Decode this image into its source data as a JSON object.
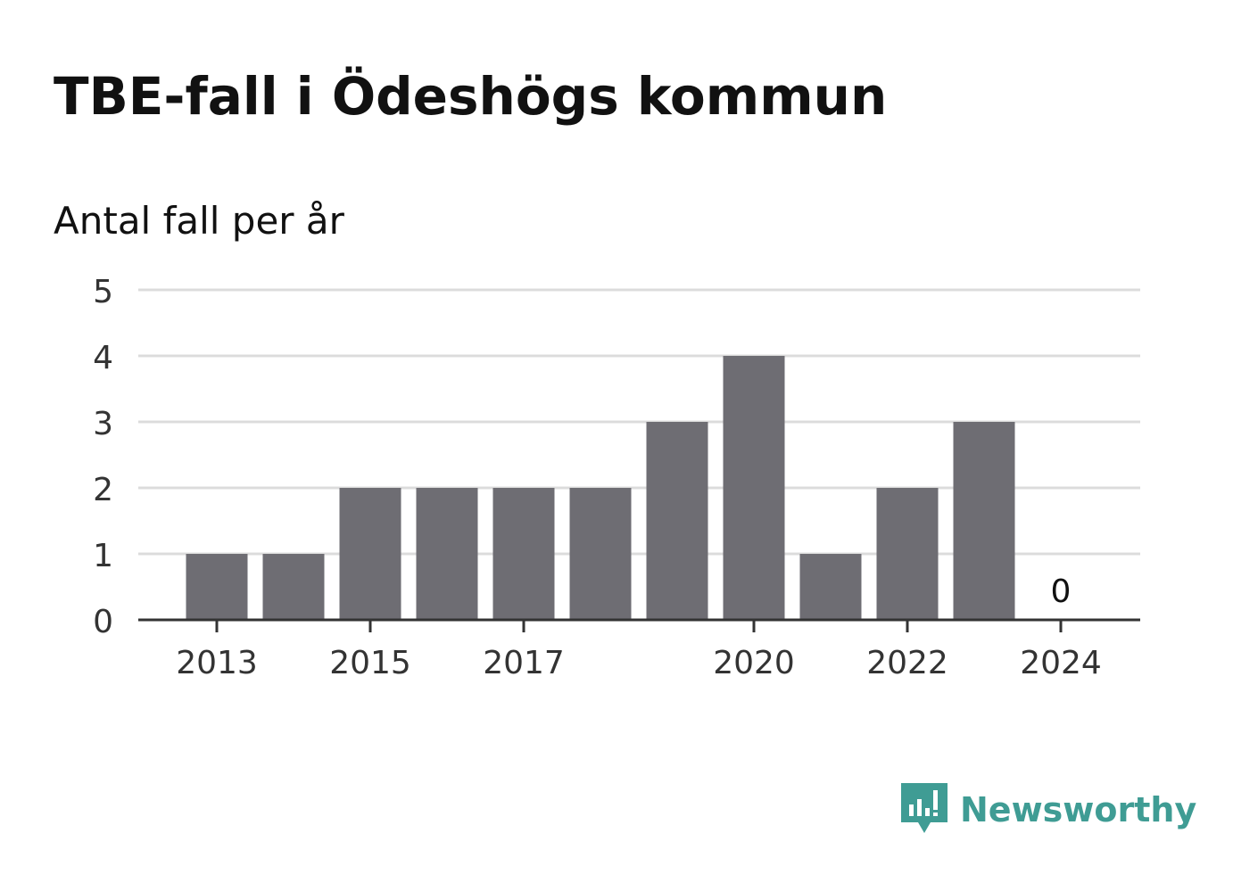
{
  "header": {
    "title": "TBE-fall i Ödeshögs kommun",
    "subtitle": "Antal fall per år"
  },
  "brand": {
    "name": "Newsworthy",
    "icon": "newsworthy-logo-icon",
    "color": "#3f9c94"
  },
  "colors": {
    "bar": "#6e6d73",
    "grid": "#dcdcdc",
    "axis": "#333333",
    "tick_text": "#333333",
    "label_text": "#111111"
  },
  "chart_data": {
    "type": "bar",
    "title": "TBE-fall i Ödeshögs kommun",
    "subtitle": "Antal fall per år",
    "xlabel": "",
    "ylabel": "",
    "categories": [
      "2013",
      "2014",
      "2015",
      "2016",
      "2017",
      "2018",
      "2019",
      "2020",
      "2021",
      "2022",
      "2023",
      "2024"
    ],
    "values": [
      1,
      1,
      2,
      2,
      2,
      2,
      3,
      4,
      1,
      2,
      3,
      0
    ],
    "ylim": [
      0,
      5
    ],
    "yticks": [
      "0",
      "1",
      "2",
      "3",
      "4",
      "5"
    ],
    "xtick_labels": [
      "2013",
      "2015",
      "2017",
      "2020",
      "2022",
      "2024"
    ],
    "data_labels": [
      {
        "category": "2024",
        "text": "0"
      }
    ],
    "grid": true,
    "legend": "none"
  }
}
